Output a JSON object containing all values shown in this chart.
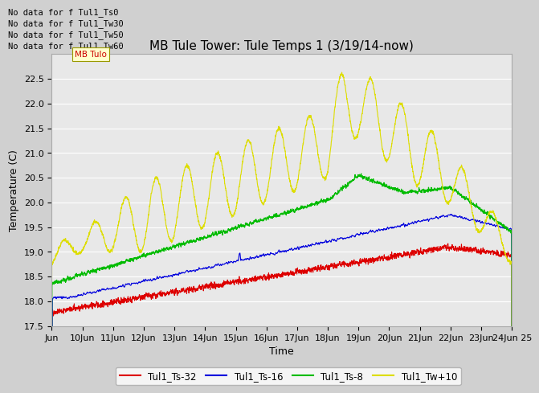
{
  "title": "MB Tule Tower: Tule Temps 1 (3/19/14-now)",
  "xlabel": "Time",
  "ylabel": "Temperature (C)",
  "ylim": [
    17.5,
    23.0
  ],
  "yticks": [
    17.5,
    18.0,
    18.5,
    19.0,
    19.5,
    20.0,
    20.5,
    21.0,
    21.5,
    22.0,
    22.5
  ],
  "xtick_labels": [
    "Jun",
    "10Jun",
    "11Jun",
    "12Jun",
    "13Jun",
    "14Jun",
    "15Jun",
    "16Jun",
    "17Jun",
    "18Jun",
    "19Jun",
    "20Jun",
    "21Jun",
    "22Jun",
    "23Jun",
    "24Jun 25"
  ],
  "no_data_lines": [
    "No data for f Tul1_Ts0",
    "No data for f Tul1_Tw30",
    "No data for f Tul1_Tw50",
    "No data for f Tul1_Tw60"
  ],
  "legend_labels": [
    "Tul1_Ts-32",
    "Tul1_Ts-16",
    "Tul1_Ts-8",
    "Tul1_Tw+10"
  ],
  "legend_colors": [
    "#dd0000",
    "#0000dd",
    "#00bb00",
    "#dddd00"
  ],
  "line_colors": {
    "Ts32": "#dd0000",
    "Ts16": "#0000dd",
    "Ts8": "#00bb00",
    "Tw10": "#dddd00"
  },
  "fig_facecolor": "#d0d0d0",
  "plot_facecolor": "#e8e8e8",
  "grid_color": "#ffffff",
  "title_fontsize": 11,
  "axis_fontsize": 9,
  "tick_fontsize": 8,
  "nodata_fontsize": 7.5,
  "tooltip_text": "MB Tulo",
  "tooltip_facecolor": "#ffffcc",
  "tooltip_edgecolor": "#999900"
}
